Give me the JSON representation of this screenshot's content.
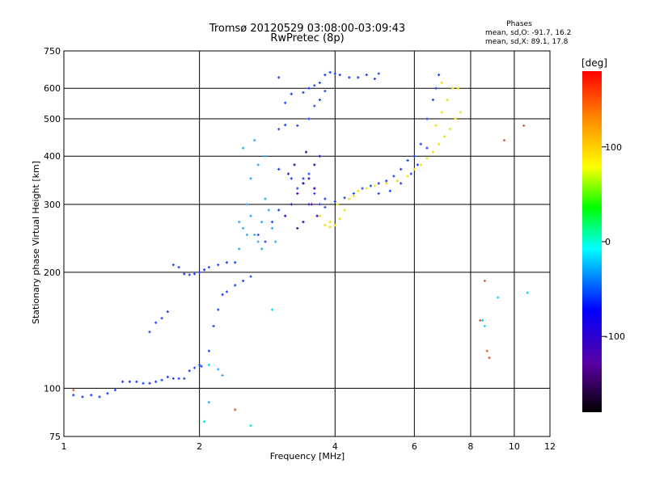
{
  "chart_data": {
    "type": "scatter",
    "title": "Tromsø 20120529 03:08:00-03:09:43",
    "subtitle": "RwPretec (8p)",
    "xlabel": "Frequency [MHz]",
    "ylabel": "Stationary phase Virtual Height [km]",
    "x_scale": "log",
    "y_scale": "log",
    "xlim": [
      1,
      12
    ],
    "ylim": [
      75,
      750
    ],
    "x_ticks": [
      1,
      2,
      4,
      6,
      8,
      10,
      12
    ],
    "y_ticks": [
      75,
      100,
      200,
      300,
      400,
      500,
      600,
      750
    ],
    "grid": true,
    "phases_box": {
      "heading": "Phases",
      "line_o": "mean, sd,O: -91.7, 16.2",
      "line_x": "mean, sd,X:  89.1, 17.8"
    },
    "colorbar": {
      "label": "[deg]",
      "range": [
        -180,
        180
      ],
      "ticks": [
        100,
        0,
        -100
      ],
      "colors": [
        "#ff0000",
        "#ffa500",
        "#ffff00",
        "#00ff00",
        "#00ffff",
        "#0000ff",
        "#5a00a0",
        "#000000"
      ]
    },
    "series": [
      {
        "color": "#1a3dff",
        "points": [
          [
            1.05,
            96
          ],
          [
            1.1,
            95
          ],
          [
            1.15,
            96
          ],
          [
            1.2,
            95
          ],
          [
            1.25,
            97
          ],
          [
            1.3,
            99
          ],
          [
            1.35,
            104
          ],
          [
            1.4,
            104
          ],
          [
            1.45,
            104
          ],
          [
            1.5,
            103
          ],
          [
            1.55,
            103
          ],
          [
            1.6,
            104
          ],
          [
            1.65,
            105
          ],
          [
            1.7,
            107
          ],
          [
            1.75,
            106
          ],
          [
            1.8,
            106
          ],
          [
            1.85,
            106
          ],
          [
            1.9,
            111
          ],
          [
            1.95,
            113
          ],
          [
            2.0,
            115
          ],
          [
            2.02,
            114
          ],
          [
            1.75,
            209
          ],
          [
            1.8,
            206
          ],
          [
            1.85,
            198
          ],
          [
            1.9,
            197
          ],
          [
            1.95,
            198
          ],
          [
            2.0,
            200
          ],
          [
            2.05,
            203
          ],
          [
            2.1,
            206
          ],
          [
            2.2,
            209
          ],
          [
            2.3,
            212
          ],
          [
            2.4,
            212
          ],
          [
            1.55,
            140
          ],
          [
            1.6,
            148
          ],
          [
            1.65,
            152
          ],
          [
            1.7,
            158
          ],
          [
            2.1,
            125
          ],
          [
            2.15,
            145
          ],
          [
            2.2,
            160
          ],
          [
            2.25,
            175
          ],
          [
            2.3,
            178
          ],
          [
            2.4,
            185
          ],
          [
            2.5,
            190
          ],
          [
            2.6,
            195
          ],
          [
            3.0,
            640
          ],
          [
            3.1,
            550
          ],
          [
            3.2,
            580
          ],
          [
            3.4,
            585
          ],
          [
            3.5,
            600
          ],
          [
            3.6,
            610
          ],
          [
            3.7,
            620
          ],
          [
            3.8,
            650
          ],
          [
            3.9,
            660
          ],
          [
            4.0,
            655
          ],
          [
            4.1,
            650
          ],
          [
            4.3,
            640
          ],
          [
            4.5,
            640
          ],
          [
            4.7,
            650
          ],
          [
            4.9,
            635
          ],
          [
            5.0,
            655
          ],
          [
            3.0,
            470
          ],
          [
            3.1,
            482
          ],
          [
            3.3,
            480
          ],
          [
            3.5,
            500
          ],
          [
            3.6,
            540
          ],
          [
            3.7,
            560
          ],
          [
            3.8,
            590
          ],
          [
            3.3,
            330
          ],
          [
            3.4,
            350
          ],
          [
            3.5,
            360
          ],
          [
            3.6,
            330
          ],
          [
            3.7,
            300
          ],
          [
            3.8,
            295
          ],
          [
            4.0,
            305
          ],
          [
            4.2,
            312
          ],
          [
            4.4,
            320
          ],
          [
            4.6,
            330
          ],
          [
            4.8,
            335
          ],
          [
            5.0,
            340
          ],
          [
            5.2,
            345
          ],
          [
            5.4,
            355
          ],
          [
            5.6,
            370
          ],
          [
            5.8,
            390
          ],
          [
            6.0,
            400
          ],
          [
            6.2,
            430
          ],
          [
            6.4,
            500
          ],
          [
            6.6,
            560
          ],
          [
            6.7,
            600
          ],
          [
            6.8,
            650
          ],
          [
            5.0,
            320
          ],
          [
            5.3,
            325
          ],
          [
            5.6,
            340
          ],
          [
            5.9,
            360
          ],
          [
            6.1,
            380
          ],
          [
            6.4,
            420
          ],
          [
            3.0,
            370
          ],
          [
            3.2,
            350
          ],
          [
            3.4,
            340
          ],
          [
            3.6,
            320
          ],
          [
            3.8,
            310
          ],
          [
            2.7,
            250
          ],
          [
            2.8,
            240
          ],
          [
            2.9,
            270
          ],
          [
            3.0,
            290
          ]
        ]
      },
      {
        "color": "#26a8ff",
        "points": [
          [
            2.45,
            230
          ],
          [
            2.5,
            260
          ],
          [
            2.55,
            300
          ],
          [
            2.6,
            280
          ],
          [
            2.65,
            250
          ],
          [
            2.7,
            240
          ],
          [
            2.75,
            270
          ],
          [
            2.8,
            310
          ],
          [
            2.85,
            290
          ],
          [
            2.9,
            260
          ],
          [
            2.95,
            240
          ],
          [
            2.6,
            350
          ],
          [
            2.7,
            380
          ],
          [
            2.8,
            400
          ],
          [
            2.5,
            420
          ],
          [
            2.65,
            440
          ],
          [
            2.45,
            270
          ],
          [
            2.55,
            250
          ],
          [
            2.75,
            230
          ],
          [
            2.2,
            112
          ],
          [
            2.25,
            108
          ],
          [
            2.1,
            92
          ]
        ]
      },
      {
        "color": "#3b00b0",
        "points": [
          [
            3.1,
            280
          ],
          [
            3.2,
            300
          ],
          [
            3.3,
            320
          ],
          [
            3.4,
            340
          ],
          [
            3.5,
            350
          ],
          [
            3.6,
            330
          ],
          [
            3.3,
            260
          ],
          [
            3.4,
            270
          ],
          [
            3.5,
            300
          ],
          [
            3.6,
            380
          ],
          [
            3.7,
            400
          ],
          [
            3.15,
            360
          ],
          [
            3.25,
            380
          ],
          [
            3.45,
            410
          ],
          [
            3.55,
            300
          ],
          [
            3.65,
            280
          ]
        ]
      },
      {
        "color": "#f0e000",
        "points": [
          [
            3.8,
            265
          ],
          [
            3.9,
            262
          ],
          [
            4.0,
            265
          ],
          [
            4.1,
            275
          ],
          [
            4.2,
            290
          ],
          [
            4.3,
            310
          ],
          [
            4.4,
            315
          ],
          [
            4.5,
            325
          ],
          [
            4.7,
            330
          ],
          [
            4.9,
            335
          ],
          [
            5.2,
            340
          ],
          [
            5.5,
            345
          ],
          [
            5.8,
            355
          ],
          [
            6.0,
            370
          ],
          [
            6.2,
            380
          ],
          [
            6.4,
            395
          ],
          [
            6.6,
            410
          ],
          [
            6.8,
            430
          ],
          [
            7.0,
            450
          ],
          [
            7.2,
            470
          ],
          [
            7.4,
            500
          ],
          [
            7.6,
            520
          ],
          [
            6.7,
            480
          ],
          [
            6.9,
            520
          ],
          [
            7.1,
            560
          ],
          [
            7.3,
            600
          ],
          [
            7.5,
            600
          ],
          [
            6.9,
            620
          ],
          [
            3.7,
            280
          ],
          [
            3.9,
            270
          ],
          [
            4.05,
            300
          ]
        ]
      },
      {
        "color": "#00d6ff",
        "points": [
          [
            2.05,
            82
          ],
          [
            2.1,
            115
          ],
          [
            2.6,
            80
          ],
          [
            2.9,
            160
          ],
          [
            8.6,
            145
          ],
          [
            8.5,
            150
          ],
          [
            9.2,
            172
          ],
          [
            10.7,
            177
          ]
        ]
      },
      {
        "color": "#e05a2a",
        "points": [
          [
            8.4,
            150
          ],
          [
            8.6,
            190
          ],
          [
            8.7,
            125
          ],
          [
            8.8,
            120
          ],
          [
            9.5,
            440
          ],
          [
            10.5,
            480
          ],
          [
            1.05,
            99
          ],
          [
            2.4,
            88
          ]
        ]
      }
    ]
  }
}
